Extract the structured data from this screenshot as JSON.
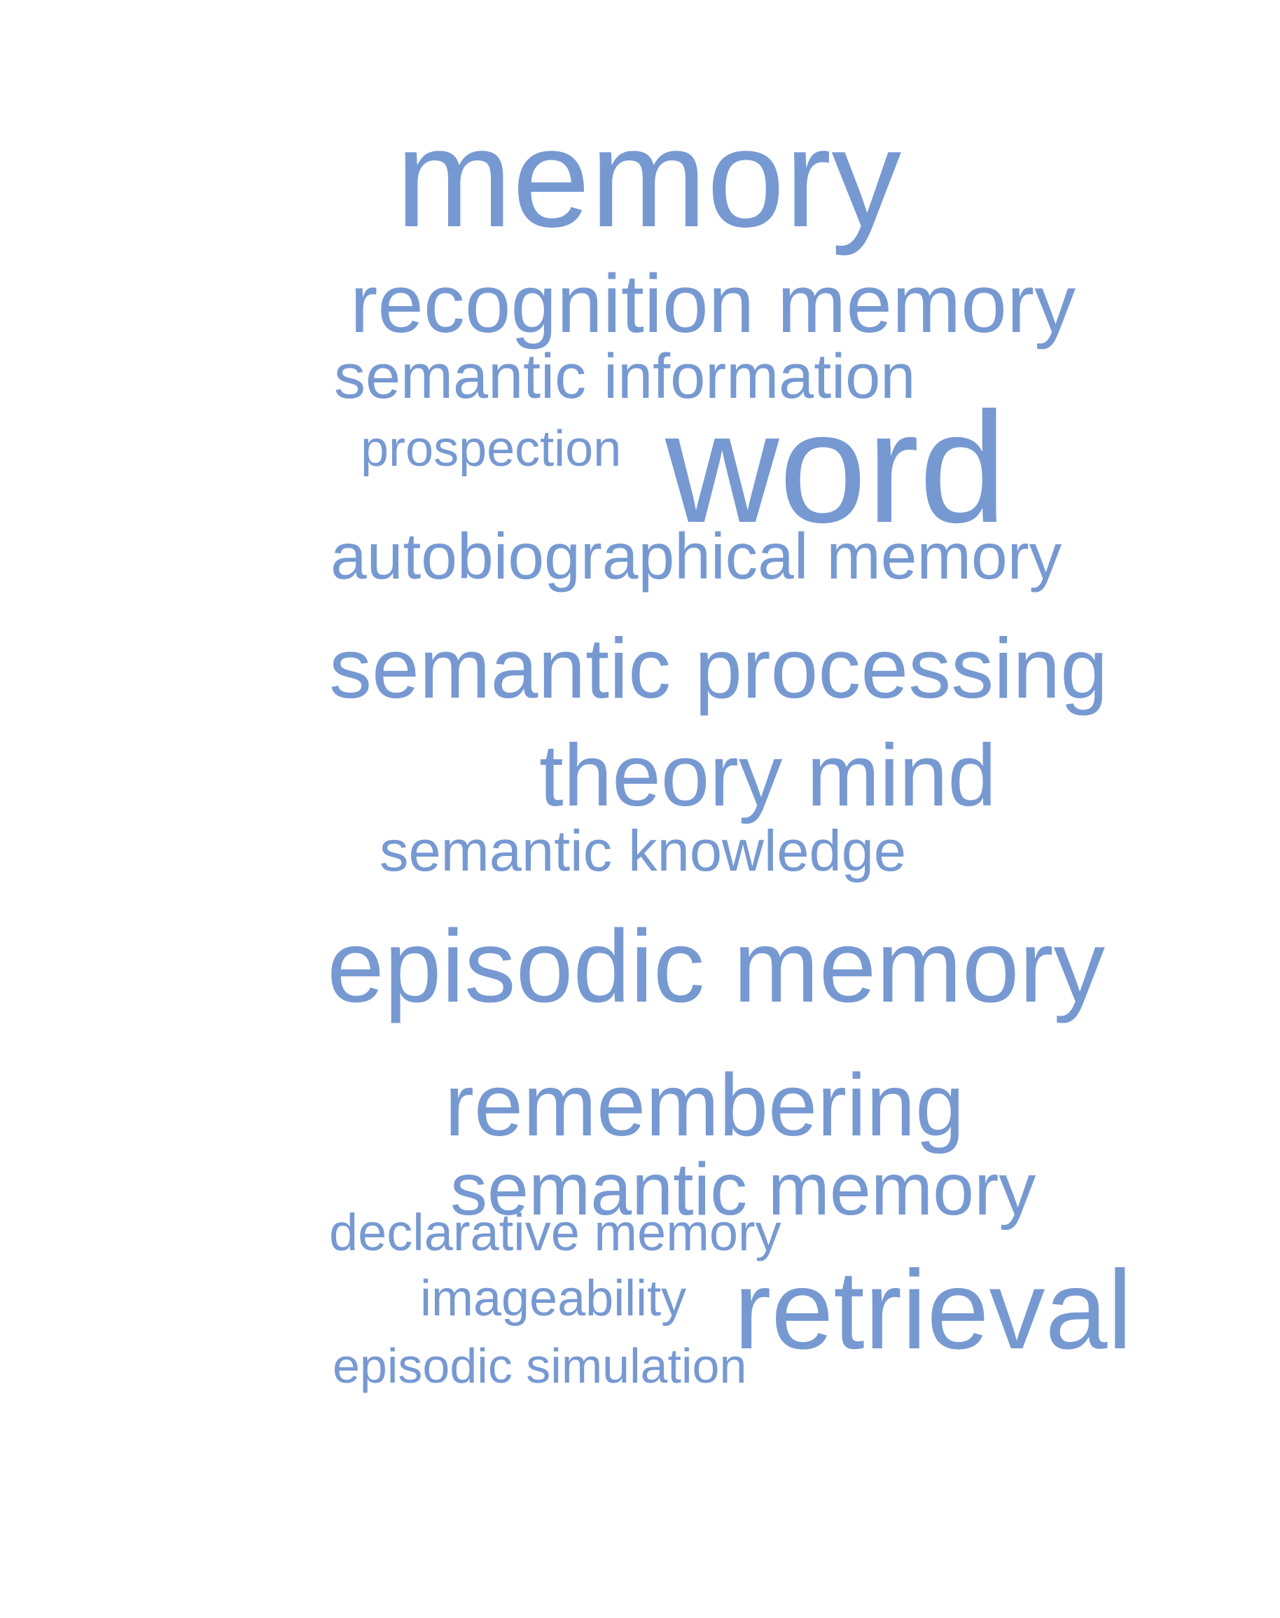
{
  "word_cloud": {
    "color": "#7799d2",
    "words": [
      {
        "id": "memory",
        "text": "memory"
      },
      {
        "id": "recognition-memory",
        "text": "recognition memory"
      },
      {
        "id": "semantic-information",
        "text": "semantic information"
      },
      {
        "id": "prospection",
        "text": "prospection"
      },
      {
        "id": "word",
        "text": "word"
      },
      {
        "id": "autobiographical-memory",
        "text": "autobiographical memory"
      },
      {
        "id": "semantic-processing",
        "text": "semantic processing"
      },
      {
        "id": "theory-mind",
        "text": "theory mind"
      },
      {
        "id": "semantic-knowledge",
        "text": "semantic knowledge"
      },
      {
        "id": "episodic-memory",
        "text": "episodic memory"
      },
      {
        "id": "remembering",
        "text": "remembering"
      },
      {
        "id": "semantic-memory",
        "text": "semantic memory"
      },
      {
        "id": "declarative-memory",
        "text": "declarative memory"
      },
      {
        "id": "imageability",
        "text": "imageability"
      },
      {
        "id": "retrieval",
        "text": "retrieval"
      },
      {
        "id": "episodic-simulation",
        "text": "episodic simulation"
      }
    ]
  }
}
